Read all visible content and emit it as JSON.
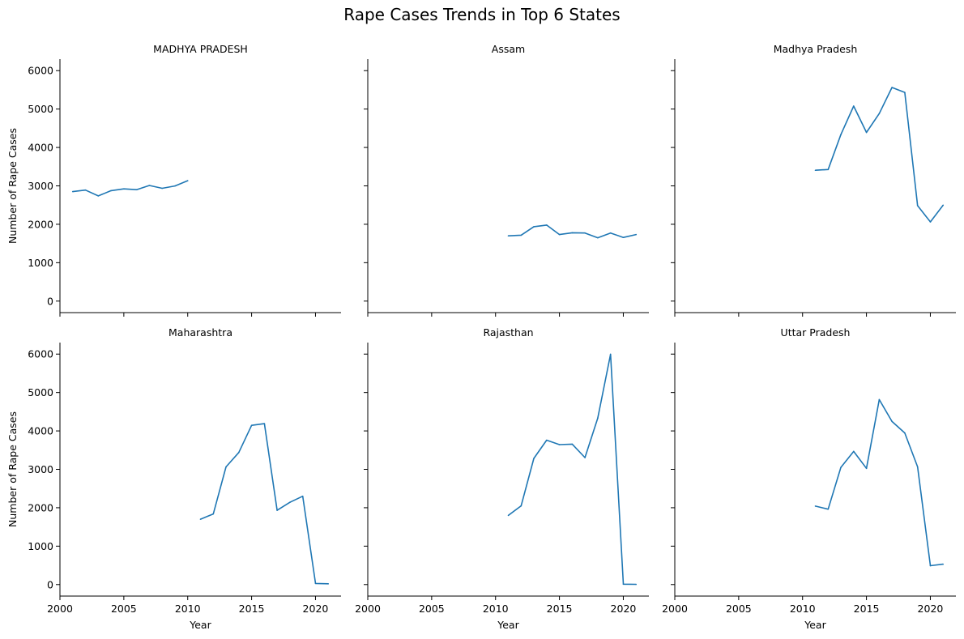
{
  "title": "Rape Cases Trends in Top 6 States",
  "colors": {
    "line": "#1f77b4",
    "axis": "#000000"
  },
  "chart_data": {
    "type": "line",
    "title": "Rape Cases Trends in Top 6 States",
    "xlabel": "Year",
    "ylabel": "Number of Rape Cases",
    "xlim": [
      2000,
      2022
    ],
    "ylim": [
      -300,
      6300
    ],
    "xticks": [
      2000,
      2005,
      2010,
      2015,
      2020
    ],
    "yticks": [
      0,
      1000,
      2000,
      3000,
      4000,
      5000,
      6000
    ],
    "grid": false,
    "layout": "2x3 facets, shared axes",
    "facets": [
      {
        "name": "MADHYA PRADESH",
        "x": [
          2001,
          2002,
          2003,
          2004,
          2005,
          2006,
          2007,
          2008,
          2009,
          2010
        ],
        "values": [
          2851,
          2891,
          2738,
          2875,
          2921,
          2900,
          3010,
          2937,
          2998,
          3135
        ]
      },
      {
        "name": "Assam",
        "x": [
          2011,
          2012,
          2013,
          2014,
          2015,
          2016,
          2017,
          2018,
          2019,
          2020,
          2021
        ],
        "values": [
          1700,
          1716,
          1937,
          1980,
          1733,
          1779,
          1772,
          1648,
          1773,
          1657,
          1733
        ]
      },
      {
        "name": "Madhya Pradesh",
        "x": [
          2011,
          2012,
          2013,
          2014,
          2015,
          2016,
          2017,
          2018,
          2019,
          2020,
          2021
        ],
        "values": [
          3406,
          3425,
          4335,
          5076,
          4391,
          4882,
          5562,
          5433,
          2485,
          2062,
          2497
        ]
      },
      {
        "name": "Maharashtra",
        "x": [
          2011,
          2012,
          2013,
          2014,
          2015,
          2016,
          2017,
          2018,
          2019,
          2020,
          2021
        ],
        "values": [
          1701,
          1839,
          3063,
          3438,
          4144,
          4189,
          1933,
          2142,
          2299,
          30,
          20
        ]
      },
      {
        "name": "Rajasthan",
        "x": [
          2011,
          2012,
          2013,
          2014,
          2015,
          2016,
          2017,
          2018,
          2019,
          2020,
          2021
        ],
        "values": [
          1800,
          2049,
          3285,
          3759,
          3644,
          3656,
          3305,
          4335,
          5997,
          10,
          5
        ]
      },
      {
        "name": "Uttar Pradesh",
        "x": [
          2011,
          2012,
          2013,
          2014,
          2015,
          2016,
          2017,
          2018,
          2019,
          2020,
          2021
        ],
        "values": [
          2042,
          1963,
          3050,
          3467,
          3025,
          4816,
          4246,
          3946,
          3065,
          490,
          530
        ]
      }
    ]
  }
}
